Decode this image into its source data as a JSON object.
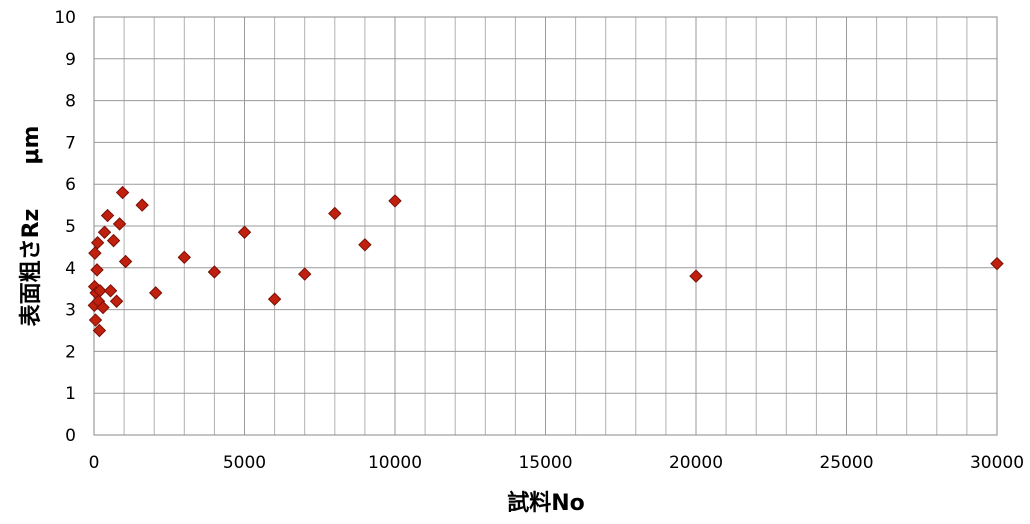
{
  "chart_data": {
    "type": "scatter",
    "xlabel": "試料No",
    "ylabel": "表面粗さRz　　μm",
    "xlim": [
      0,
      30000
    ],
    "ylim": [
      0,
      10
    ],
    "x_ticks": [
      0,
      5000,
      10000,
      15000,
      20000,
      25000,
      30000
    ],
    "y_ticks": [
      0,
      1,
      2,
      3,
      4,
      5,
      6,
      7,
      8,
      9,
      10
    ],
    "grid": true,
    "marker": "diamond",
    "marker_color": "#c0200e",
    "marker_edge_color": "#7a1008",
    "grid_color": "#b0b0b0",
    "points": [
      {
        "x": 10,
        "y": 3.1
      },
      {
        "x": 20,
        "y": 3.55
      },
      {
        "x": 30,
        "y": 4.35
      },
      {
        "x": 50,
        "y": 2.75
      },
      {
        "x": 70,
        "y": 3.4
      },
      {
        "x": 100,
        "y": 3.95
      },
      {
        "x": 120,
        "y": 4.6
      },
      {
        "x": 150,
        "y": 3.2
      },
      {
        "x": 180,
        "y": 2.5
      },
      {
        "x": 200,
        "y": 3.45
      },
      {
        "x": 300,
        "y": 3.05
      },
      {
        "x": 350,
        "y": 4.85
      },
      {
        "x": 450,
        "y": 5.25
      },
      {
        "x": 550,
        "y": 3.45
      },
      {
        "x": 650,
        "y": 4.65
      },
      {
        "x": 750,
        "y": 3.2
      },
      {
        "x": 850,
        "y": 5.05
      },
      {
        "x": 950,
        "y": 5.8
      },
      {
        "x": 1050,
        "y": 4.15
      },
      {
        "x": 1600,
        "y": 5.5
      },
      {
        "x": 2050,
        "y": 3.4
      },
      {
        "x": 3000,
        "y": 4.25
      },
      {
        "x": 4000,
        "y": 3.9
      },
      {
        "x": 5000,
        "y": 4.85
      },
      {
        "x": 6000,
        "y": 3.25
      },
      {
        "x": 7000,
        "y": 3.85
      },
      {
        "x": 8000,
        "y": 5.3
      },
      {
        "x": 9000,
        "y": 4.55
      },
      {
        "x": 10000,
        "y": 5.6
      },
      {
        "x": 20000,
        "y": 3.8
      },
      {
        "x": 30000,
        "y": 4.1
      }
    ]
  }
}
